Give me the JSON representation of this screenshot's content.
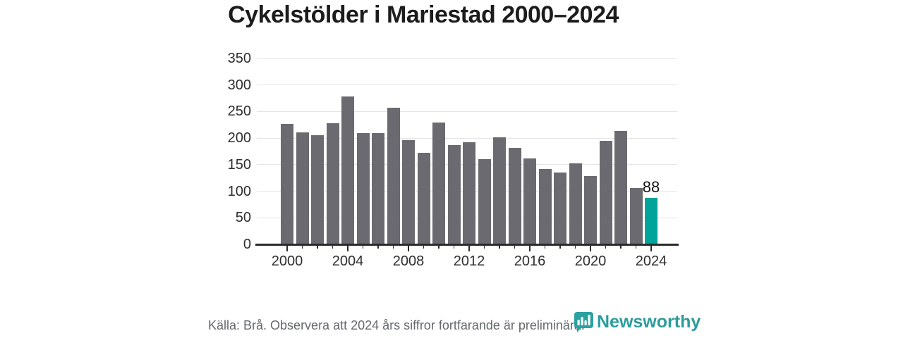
{
  "title": "Cykelstölder i Mariestad 2000–2024",
  "chart_data": {
    "type": "bar",
    "title": "Cykelstölder i Mariestad 2000–2024",
    "categories": [
      2000,
      2001,
      2002,
      2003,
      2004,
      2005,
      2006,
      2007,
      2008,
      2009,
      2010,
      2011,
      2012,
      2013,
      2014,
      2015,
      2016,
      2017,
      2018,
      2019,
      2020,
      2021,
      2022,
      2023,
      2024
    ],
    "values": [
      227,
      211,
      205,
      228,
      279,
      209,
      209,
      257,
      196,
      172,
      230,
      187,
      192,
      161,
      201,
      182,
      162,
      142,
      135,
      153,
      129,
      195,
      213,
      106,
      88
    ],
    "highlight_index": 24,
    "value_label": {
      "index": 24,
      "text": "88"
    },
    "xlabel": "",
    "ylabel": "",
    "ylim": [
      0,
      350
    ],
    "y_ticks": [
      0,
      50,
      100,
      150,
      200,
      250,
      300,
      350
    ],
    "x_tick_labels": [
      "2000",
      "2004",
      "2008",
      "2012",
      "2016",
      "2020",
      "2024"
    ],
    "grid": true,
    "legend": "none",
    "bar_color": "#6b6a70",
    "highlight_color": "#00a49b"
  },
  "footer": {
    "source_text": "Källa: Brå. Observera att 2024 års siffror fortfarande är preliminära.",
    "brand": "Newsworthy"
  },
  "colors": {
    "title_text": "#1c1c1c",
    "axis_text": "#2e2e2e",
    "axis_line": "#2b2b2b",
    "gridline": "#e4e4e4",
    "source_text": "#64686c",
    "brand_teal": "#2d9c9c"
  }
}
